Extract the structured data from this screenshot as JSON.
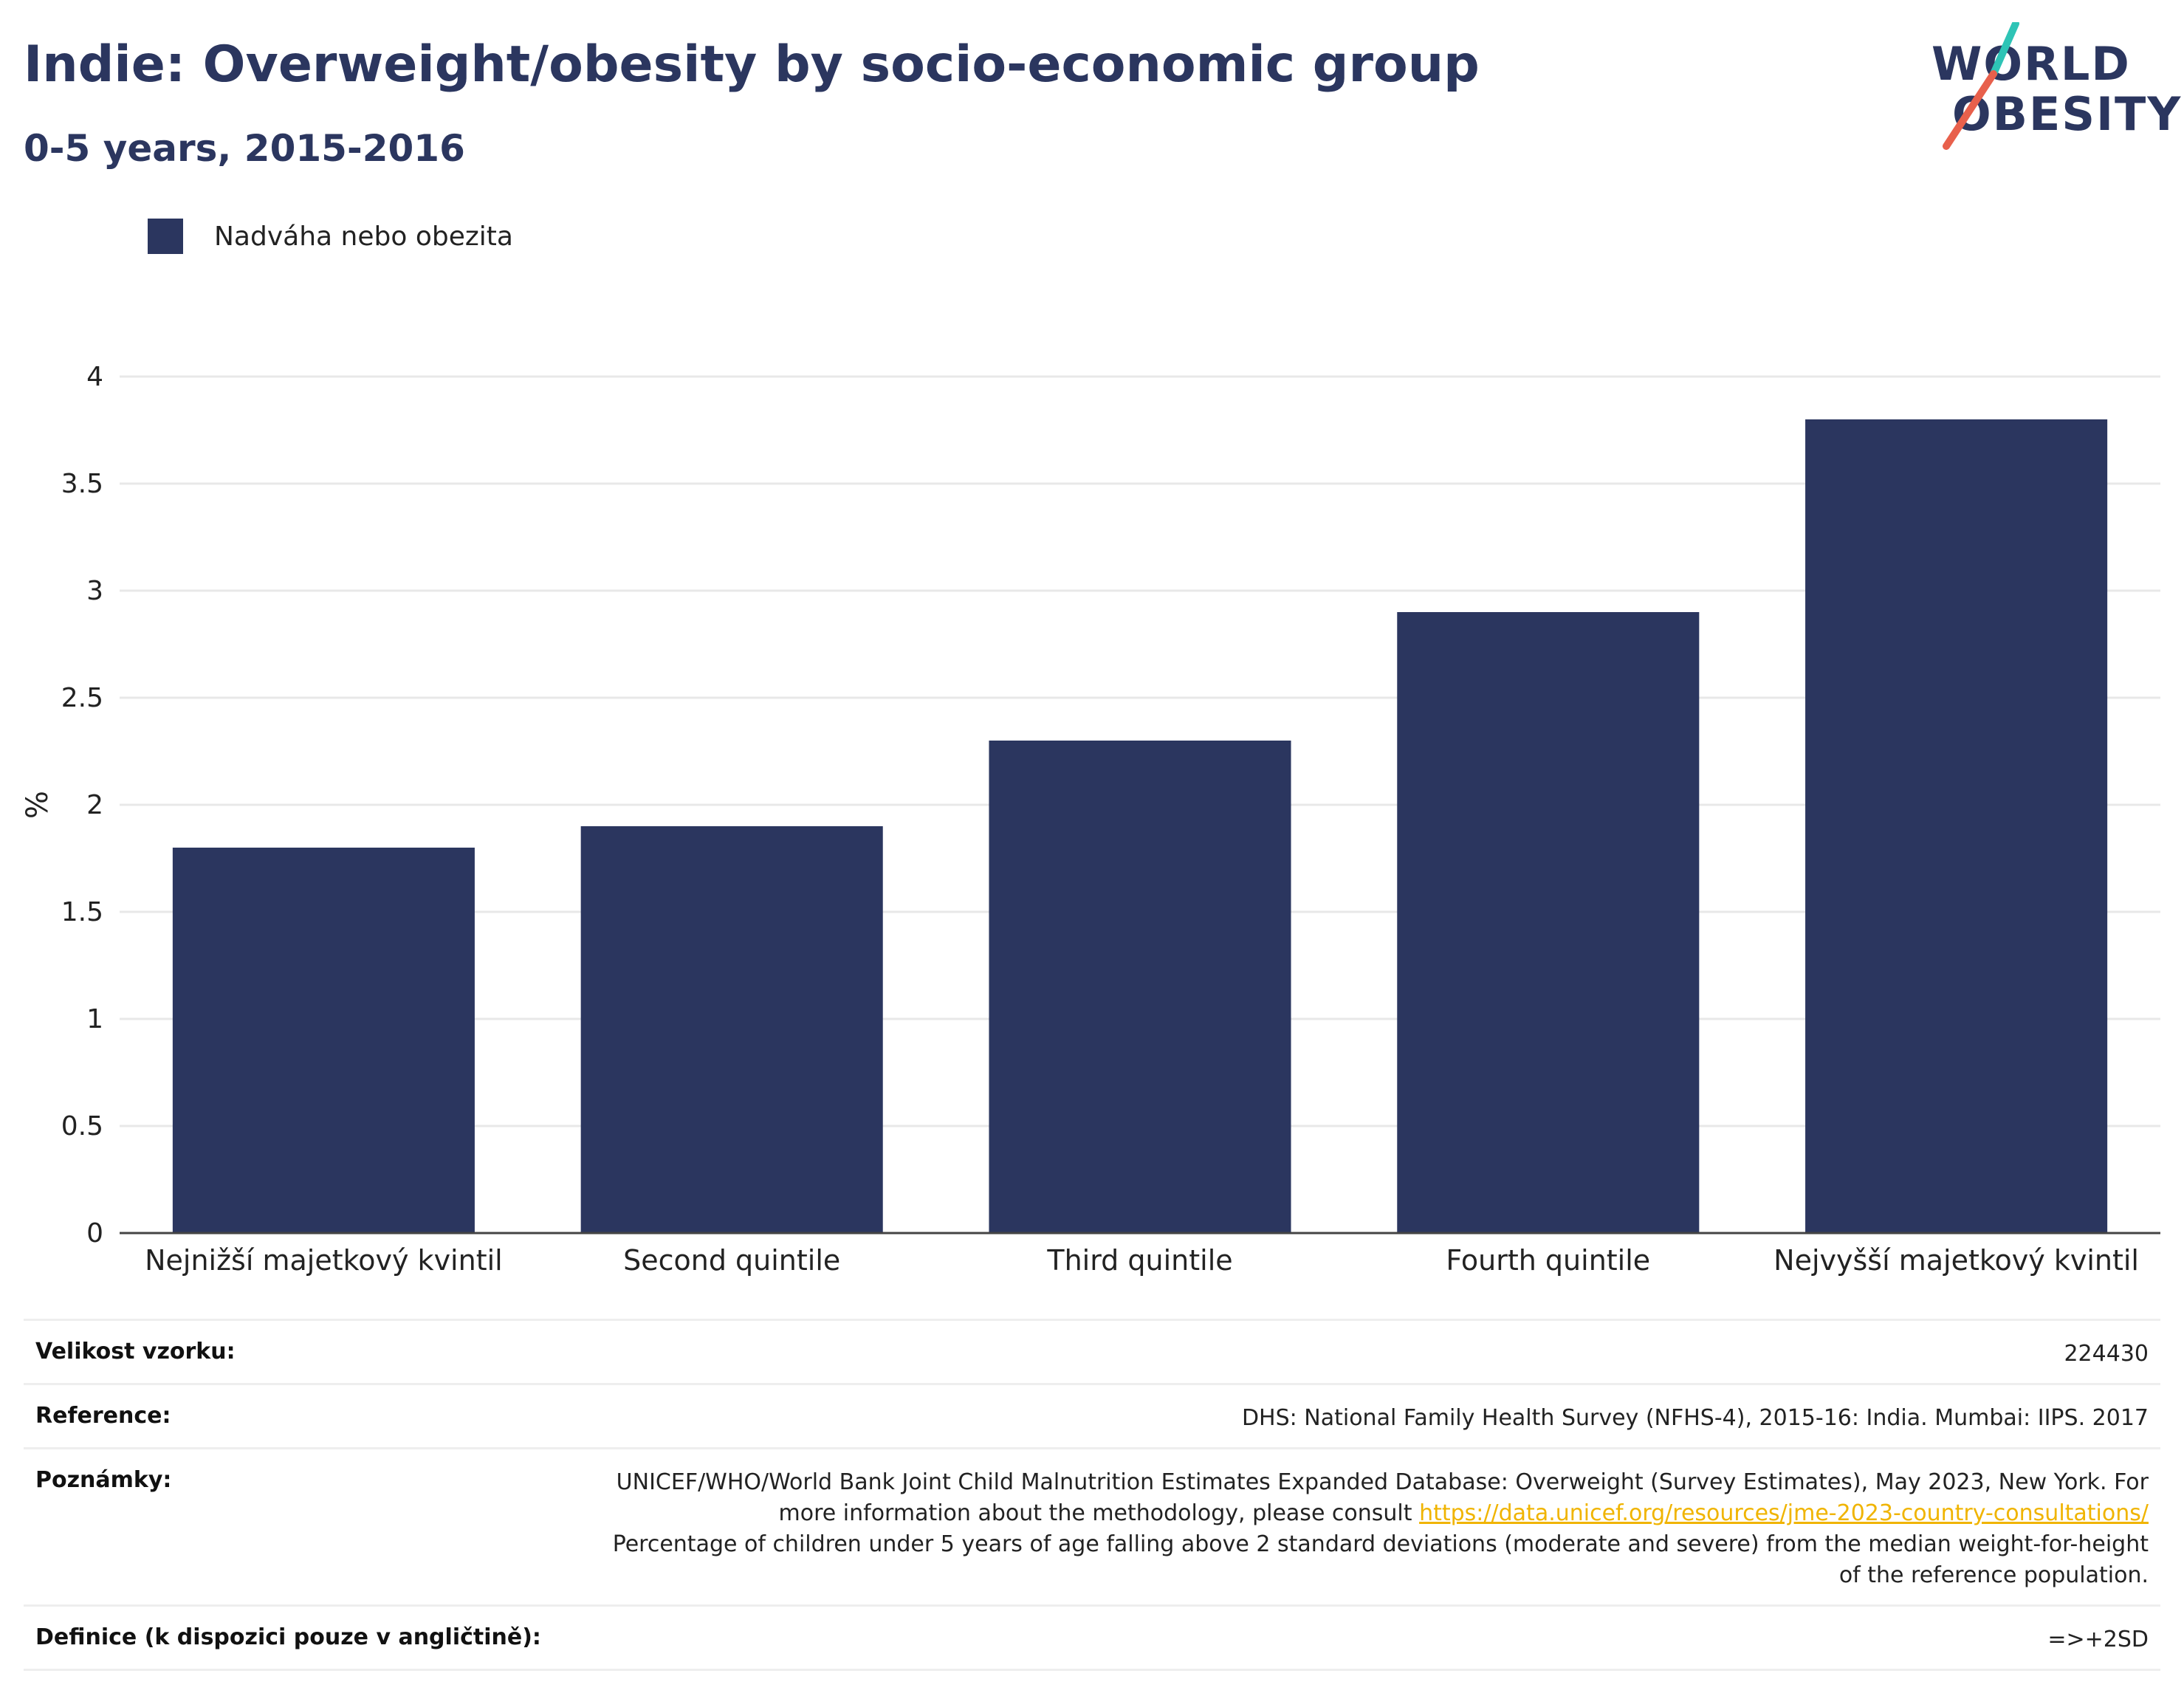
{
  "header": {
    "title": "Indie: Overweight/obesity by socio-economic group",
    "subtitle": "0-5 years, 2015-2016"
  },
  "logo": {
    "line1": "WORLD",
    "line2": "OBESITY",
    "accent_colors": [
      "#2ec4b6",
      "#e8604c"
    ]
  },
  "legend": {
    "label": "Nadváha nebo obezita",
    "color": "#2b365f"
  },
  "chart_data": {
    "type": "bar",
    "categories": [
      "Nejnižší majetkový kvintil",
      "Second quintile",
      "Third quintile",
      "Fourth quintile",
      "Nejvyšší majetkový kvintil"
    ],
    "series": [
      {
        "name": "Nadváha nebo obezita",
        "values": [
          1.8,
          1.9,
          2.3,
          2.9,
          3.8
        ],
        "color": "#2b365f"
      }
    ],
    "ylabel": "%",
    "ylim": [
      0,
      4
    ],
    "yticks": [
      0,
      0.5,
      1,
      1.5,
      2,
      2.5,
      3,
      3.5,
      4
    ],
    "ytick_labels": [
      "0",
      "0.5",
      "1",
      "1.5",
      "2",
      "2.5",
      "3",
      "3.5",
      "4"
    ],
    "grid": true,
    "legend_position": "top-left"
  },
  "meta": {
    "sample_label": "Velikost vzorku:",
    "sample_value": "224430",
    "reference_label": "Reference:",
    "reference_value": "DHS: National Family Health Survey (NFHS-4), 2015-16: India. Mumbai: IIPS. 2017",
    "notes_label": "Poznámky:",
    "notes_text_1": "UNICEF/WHO/World Bank Joint Child Malnutrition Estimates Expanded Database: Overweight (Survey Estimates), May 2023, New York. For more information about the methodology, please consult",
    "notes_link": "https://data.unicef.org/resources/jme-2023-country-consultations/",
    "notes_text_2": "Percentage of children under 5 years of age falling above 2 standard deviations (moderate and severe) from the median weight-for-height of the reference population.",
    "definition_label": "Definice (k dispozici pouze v angličtině):",
    "definition_value": "=>+2SD"
  }
}
